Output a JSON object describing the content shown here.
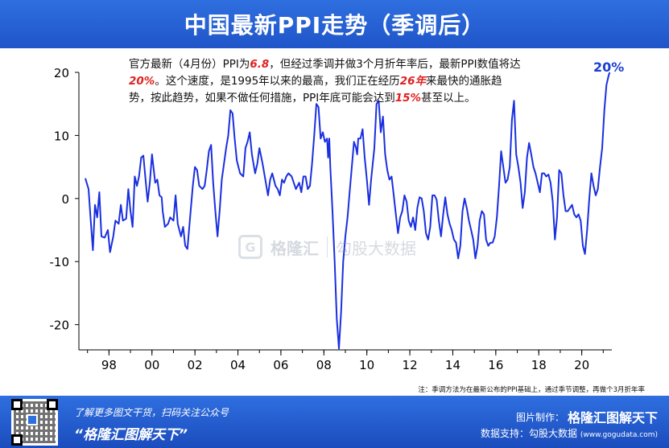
{
  "title": "中国最新PPI走势（季调后）",
  "annotation": {
    "p1": "官方最新（4月份）PPI为",
    "v1": "6.8",
    "p2": "，但经过季调并做3个月折年率后，最新PPI数值将达",
    "v2": "20%",
    "p3": "。这个速度，是1995年以来的最高，我们正在经历",
    "v3": "26年",
    "p4": "来最快的通胀趋势，按此趋势，如果不做任何措施，PPI年底可能会达到",
    "v4": "15%",
    "p5": "甚至以上。"
  },
  "end_label": "20%",
  "note": "注：季调方法为在最新公布的PPI基础上，通过季节调整，再做个3月折年率",
  "watermark": {
    "logo_glyph": "G",
    "brand": "格隆汇",
    "brand2": "勾股大数据"
  },
  "footer": {
    "sub": "了解更多图文干货，扫码关注公众号",
    "slogan": "“格隆汇图解天下”",
    "credit_prefix": "图片制作：",
    "credit_brand": "格隆汇图解天下",
    "data_prefix": "数据支持：勾股大数据",
    "data_url": "(www.gogudata.com)"
  },
  "colors": {
    "header_bg": "#2364d8",
    "line": "#1a2fe0",
    "highlight": "#e02020"
  },
  "chart_data": {
    "type": "line",
    "ylim": [
      -24,
      20
    ],
    "yticks": [
      20,
      10,
      0,
      -10,
      -20
    ],
    "xlim": [
      1996.6,
      2021.4
    ],
    "xticks": [
      {
        "year": 1998,
        "label": "98"
      },
      {
        "year": 2000,
        "label": "00"
      },
      {
        "year": 2002,
        "label": "02"
      },
      {
        "year": 2004,
        "label": "04"
      },
      {
        "year": 2006,
        "label": "06"
      },
      {
        "year": 2008,
        "label": "08"
      },
      {
        "year": 2010,
        "label": "10"
      },
      {
        "year": 2012,
        "label": "12"
      },
      {
        "year": 2014,
        "label": "14"
      },
      {
        "year": 2016,
        "label": "16"
      },
      {
        "year": 2018,
        "label": "18"
      },
      {
        "year": 2020,
        "label": "20"
      }
    ],
    "series": [
      {
        "values": [
          [
            1996.9,
            3.2
          ],
          [
            1997.05,
            1.5
          ],
          [
            1997.15,
            -3.5
          ],
          [
            1997.25,
            -8.2
          ],
          [
            1997.35,
            -1.0
          ],
          [
            1997.45,
            -3.0
          ],
          [
            1997.55,
            1.0
          ],
          [
            1997.65,
            -6.0
          ],
          [
            1997.8,
            -6.2
          ],
          [
            1997.95,
            -5.0
          ],
          [
            1998.05,
            -8.5
          ],
          [
            1998.2,
            -6.0
          ],
          [
            1998.3,
            -3.5
          ],
          [
            1998.45,
            -4.0
          ],
          [
            1998.55,
            -1.0
          ],
          [
            1998.65,
            -3.5
          ],
          [
            1998.8,
            -3.2
          ],
          [
            1998.9,
            1.5
          ],
          [
            1999.0,
            -2.0
          ],
          [
            1999.1,
            -4.5
          ],
          [
            1999.2,
            3.5
          ],
          [
            1999.3,
            2.0
          ],
          [
            1999.4,
            3.5
          ],
          [
            1999.5,
            6.5
          ],
          [
            1999.6,
            6.8
          ],
          [
            1999.7,
            3.0
          ],
          [
            1999.8,
            -0.5
          ],
          [
            1999.9,
            2.5
          ],
          [
            2000.0,
            7.0
          ],
          [
            2000.15,
            2.5
          ],
          [
            2000.25,
            3.0
          ],
          [
            2000.35,
            0.5
          ],
          [
            2000.45,
            0.2
          ],
          [
            2000.5,
            -2.0
          ],
          [
            2000.6,
            -4.5
          ],
          [
            2000.75,
            -4.0
          ],
          [
            2000.85,
            -3.0
          ],
          [
            2001.0,
            -3.5
          ],
          [
            2001.1,
            0.5
          ],
          [
            2001.2,
            -4.0
          ],
          [
            2001.35,
            -6.0
          ],
          [
            2001.45,
            -4.5
          ],
          [
            2001.55,
            -7.5
          ],
          [
            2001.65,
            -8.0
          ],
          [
            2001.8,
            -2.0
          ],
          [
            2001.9,
            2.0
          ],
          [
            2002.0,
            5.0
          ],
          [
            2002.1,
            4.5
          ],
          [
            2002.2,
            2.0
          ],
          [
            2002.35,
            1.5
          ],
          [
            2002.45,
            2.0
          ],
          [
            2002.55,
            4.5
          ],
          [
            2002.65,
            7.5
          ],
          [
            2002.75,
            8.5
          ],
          [
            2002.85,
            2.5
          ],
          [
            2002.95,
            -2.0
          ],
          [
            2003.05,
            -6.0
          ],
          [
            2003.15,
            -2.0
          ],
          [
            2003.25,
            3.0
          ],
          [
            2003.35,
            5.5
          ],
          [
            2003.45,
            8.0
          ],
          [
            2003.55,
            10.0
          ],
          [
            2003.65,
            14.0
          ],
          [
            2003.75,
            13.5
          ],
          [
            2003.85,
            9.5
          ],
          [
            2003.95,
            6.0
          ],
          [
            2004.1,
            4.0
          ],
          [
            2004.25,
            3.5
          ],
          [
            2004.35,
            8.0
          ],
          [
            2004.45,
            9.0
          ],
          [
            2004.55,
            10.5
          ],
          [
            2004.65,
            7.0
          ],
          [
            2004.8,
            4.0
          ],
          [
            2004.9,
            5.5
          ],
          [
            2005.0,
            8.0
          ],
          [
            2005.15,
            5.5
          ],
          [
            2005.25,
            3.5
          ],
          [
            2005.4,
            0.5
          ],
          [
            2005.5,
            3.0
          ],
          [
            2005.6,
            4.0
          ],
          [
            2005.75,
            2.0
          ],
          [
            2005.85,
            1.5
          ],
          [
            2005.95,
            0.5
          ],
          [
            2006.05,
            3.0
          ],
          [
            2006.15,
            2.5
          ],
          [
            2006.25,
            3.5
          ],
          [
            2006.35,
            4.0
          ],
          [
            2006.5,
            3.5
          ],
          [
            2006.6,
            2.5
          ],
          [
            2006.7,
            1.5
          ],
          [
            2006.85,
            2.5
          ],
          [
            2006.95,
            1.0
          ],
          [
            2007.05,
            3.5
          ],
          [
            2007.15,
            3.5
          ],
          [
            2007.25,
            1.5
          ],
          [
            2007.35,
            2.0
          ],
          [
            2007.45,
            5.5
          ],
          [
            2007.55,
            10.0
          ],
          [
            2007.65,
            15.0
          ],
          [
            2007.75,
            14.5
          ],
          [
            2007.85,
            9.5
          ],
          [
            2007.95,
            10.5
          ],
          [
            2008.05,
            9.0
          ],
          [
            2008.15,
            9.5
          ],
          [
            2008.2,
            6.5
          ],
          [
            2008.25,
            9.5
          ],
          [
            2008.3,
            5.0
          ],
          [
            2008.4,
            -2.0
          ],
          [
            2008.5,
            -10.0
          ],
          [
            2008.6,
            -19.0
          ],
          [
            2008.7,
            -23.8
          ],
          [
            2008.8,
            -18.0
          ],
          [
            2008.9,
            -10.0
          ],
          [
            2009.0,
            -6.0
          ],
          [
            2009.1,
            -3.0
          ],
          [
            2009.2,
            1.0
          ],
          [
            2009.3,
            5.0
          ],
          [
            2009.4,
            9.0
          ],
          [
            2009.5,
            8.0
          ],
          [
            2009.55,
            7.0
          ],
          [
            2009.6,
            9.5
          ],
          [
            2009.7,
            9.5
          ],
          [
            2009.8,
            11.0
          ],
          [
            2009.9,
            6.5
          ],
          [
            2010.0,
            3.0
          ],
          [
            2010.1,
            -1.0
          ],
          [
            2010.2,
            3.0
          ],
          [
            2010.35,
            8.0
          ],
          [
            2010.45,
            15.0
          ],
          [
            2010.55,
            15.5
          ],
          [
            2010.65,
            10.5
          ],
          [
            2010.75,
            13.0
          ],
          [
            2010.85,
            7.0
          ],
          [
            2010.95,
            4.5
          ],
          [
            2011.05,
            3.0
          ],
          [
            2011.15,
            3.5
          ],
          [
            2011.25,
            0.5
          ],
          [
            2011.35,
            -2.5
          ],
          [
            2011.45,
            -5.5
          ],
          [
            2011.55,
            -3.0
          ],
          [
            2011.65,
            -2.0
          ],
          [
            2011.75,
            0.5
          ],
          [
            2011.85,
            -0.5
          ],
          [
            2011.95,
            -3.5
          ],
          [
            2012.05,
            -4.5
          ],
          [
            2012.15,
            -3.0
          ],
          [
            2012.25,
            -5.0
          ],
          [
            2012.35,
            -1.5
          ],
          [
            2012.45,
            0.2
          ],
          [
            2012.55,
            0.0
          ],
          [
            2012.65,
            -2.0
          ],
          [
            2012.75,
            -5.5
          ],
          [
            2012.85,
            -6.5
          ],
          [
            2012.95,
            -4.5
          ],
          [
            2013.05,
            0.5
          ],
          [
            2013.15,
            0.5
          ],
          [
            2013.25,
            -0.2
          ],
          [
            2013.35,
            -3.5
          ],
          [
            2013.45,
            -6.0
          ],
          [
            2013.55,
            -2.5
          ],
          [
            2013.65,
            0.2
          ],
          [
            2013.75,
            -2.5
          ],
          [
            2013.85,
            -4.0
          ],
          [
            2013.95,
            -5.0
          ],
          [
            2014.05,
            -6.5
          ],
          [
            2014.15,
            -7.0
          ],
          [
            2014.25,
            -9.5
          ],
          [
            2014.35,
            -7.5
          ],
          [
            2014.45,
            -2.0
          ],
          [
            2014.55,
            0.0
          ],
          [
            2014.65,
            -1.5
          ],
          [
            2014.75,
            -3.5
          ],
          [
            2014.85,
            -5.0
          ],
          [
            2014.95,
            -6.5
          ],
          [
            2015.05,
            -9.5
          ],
          [
            2015.15,
            -7.5
          ],
          [
            2015.25,
            -3.5
          ],
          [
            2015.35,
            -2.0
          ],
          [
            2015.45,
            -2.5
          ],
          [
            2015.55,
            -6.5
          ],
          [
            2015.65,
            -7.5
          ],
          [
            2015.75,
            -7.0
          ],
          [
            2015.85,
            -7.0
          ],
          [
            2015.95,
            -6.0
          ],
          [
            2016.05,
            -3.0
          ],
          [
            2016.15,
            2.0
          ],
          [
            2016.25,
            7.5
          ],
          [
            2016.35,
            5.0
          ],
          [
            2016.45,
            2.5
          ],
          [
            2016.55,
            3.0
          ],
          [
            2016.65,
            5.0
          ],
          [
            2016.75,
            12.5
          ],
          [
            2016.85,
            15.5
          ],
          [
            2016.95,
            7.0
          ],
          [
            2017.05,
            5.0
          ],
          [
            2017.15,
            2.5
          ],
          [
            2017.25,
            -1.5
          ],
          [
            2017.35,
            1.0
          ],
          [
            2017.45,
            6.5
          ],
          [
            2017.55,
            8.8
          ],
          [
            2017.65,
            7.0
          ],
          [
            2017.75,
            5.0
          ],
          [
            2017.85,
            4.0
          ],
          [
            2017.95,
            2.5
          ],
          [
            2018.05,
            1.0
          ],
          [
            2018.15,
            4.0
          ],
          [
            2018.25,
            4.0
          ],
          [
            2018.35,
            3.5
          ],
          [
            2018.45,
            3.8
          ],
          [
            2018.55,
            2.5
          ],
          [
            2018.65,
            -0.5
          ],
          [
            2018.75,
            -6.5
          ],
          [
            2018.85,
            -3.0
          ],
          [
            2018.95,
            4.5
          ],
          [
            2019.05,
            4.0
          ],
          [
            2019.15,
            0.5
          ],
          [
            2019.25,
            -2.0
          ],
          [
            2019.35,
            -2.0
          ],
          [
            2019.45,
            -1.5
          ],
          [
            2019.55,
            -1.0
          ],
          [
            2019.65,
            -2.5
          ],
          [
            2019.75,
            -3.0
          ],
          [
            2019.85,
            -2.5
          ],
          [
            2019.95,
            -3.5
          ],
          [
            2020.05,
            -7.5
          ],
          [
            2020.15,
            -8.8
          ],
          [
            2020.25,
            -5.0
          ],
          [
            2020.35,
            0.0
          ],
          [
            2020.45,
            4.0
          ],
          [
            2020.55,
            2.0
          ],
          [
            2020.65,
            0.5
          ],
          [
            2020.75,
            1.5
          ],
          [
            2020.85,
            5.0
          ],
          [
            2020.95,
            8.0
          ],
          [
            2021.05,
            14.0
          ],
          [
            2021.15,
            18.0
          ],
          [
            2021.25,
            19.5
          ],
          [
            2021.3,
            20.0
          ]
        ]
      }
    ]
  }
}
